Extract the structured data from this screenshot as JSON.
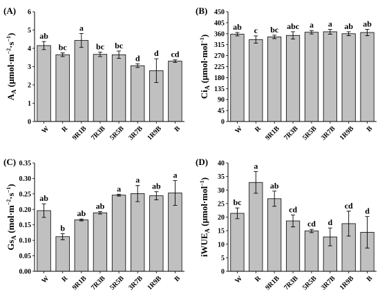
{
  "chart_data": [
    {
      "type": "bar",
      "panel_label": "(A)",
      "ylabel": {
        "main": "A",
        "sub": "A",
        "unit_open": " (μmol·m",
        "sup1": "−2",
        "mid": "·s",
        "sup2": "−1",
        "unit_close": ")"
      },
      "ylim": [
        0,
        6
      ],
      "yticks": [
        "0",
        "1",
        "2",
        "3",
        "4",
        "5",
        "6"
      ],
      "categories": [
        "W",
        "R",
        "9R1B",
        "7R3B",
        "5R5B",
        "3R7B",
        "1R9B",
        "B"
      ],
      "values": [
        4.15,
        3.65,
        4.43,
        3.67,
        3.65,
        3.05,
        2.78,
        3.3
      ],
      "errors": [
        0.22,
        0.1,
        0.38,
        0.12,
        0.2,
        0.1,
        0.65,
        0.07
      ],
      "letters": [
        "ab",
        "bc",
        "a",
        "bc",
        "bc",
        "d",
        "d",
        "cd"
      ],
      "bar_color": "#c0c0c0",
      "grid": false
    },
    {
      "type": "bar",
      "panel_label": "(B)",
      "ylabel": {
        "main": "Ci",
        "sub": "A",
        "unit_open": " (μmol·mol",
        "sup1": "−1",
        "mid": "",
        "sup2": "",
        "unit_close": ")"
      },
      "ylim": [
        0,
        450
      ],
      "yticks": [
        "0",
        "45",
        "90",
        "135",
        "180",
        "225",
        "270",
        "315",
        "360",
        "405",
        "450"
      ],
      "categories": [
        "W",
        "R",
        "9R1B",
        "7R3B",
        "5R5B",
        "3R7B",
        "1R9B",
        "B"
      ],
      "values": [
        358,
        336,
        347,
        353,
        366,
        368,
        360,
        365
      ],
      "errors": [
        7,
        15,
        7,
        15,
        7,
        10,
        8,
        13
      ],
      "letters": [
        "ab",
        "c",
        "bc",
        "abc",
        "a",
        "a",
        "ab",
        "ab"
      ],
      "bar_color": "#c0c0c0",
      "grid": false
    },
    {
      "type": "bar",
      "panel_label": "(C)",
      "ylabel": {
        "main": "Gs",
        "sub": "A",
        "unit_open": " (mol·m",
        "sup1": "−2",
        "mid": "·s",
        "sup2": "−1",
        "unit_close": ")"
      },
      "ylim": [
        0,
        0.35
      ],
      "yticks": [
        "0.00",
        "0.05",
        "0.10",
        "0.15",
        "0.20",
        "0.25",
        "0.30",
        "0.35"
      ],
      "categories": [
        "W",
        "R",
        "9R1B",
        "7R3B",
        "5R5B",
        "3R7B",
        "1R9B",
        "B"
      ],
      "values": [
        0.196,
        0.112,
        0.166,
        0.189,
        0.246,
        0.251,
        0.244,
        0.253
      ],
      "errors": [
        0.022,
        0.01,
        0.003,
        0.004,
        0.003,
        0.026,
        0.013,
        0.04
      ],
      "letters": [
        "ab",
        "b",
        "ab",
        "ab",
        "a",
        "a",
        "ab",
        "a"
      ],
      "bar_color": "#c0c0c0",
      "grid": false
    },
    {
      "type": "bar",
      "panel_label": "(D)",
      "ylabel": {
        "main": "iWUE",
        "sub": "A",
        "unit_open": " (μmol·mol",
        "sup1": "−1",
        "mid": "",
        "sup2": "",
        "unit_close": ")"
      },
      "ylim": [
        0,
        40
      ],
      "yticks": [
        "0",
        "5",
        "10",
        "15",
        "20",
        "25",
        "30",
        "35",
        "40"
      ],
      "categories": [
        "W",
        "R",
        "9R1B",
        "7R3B",
        "5R5B",
        "3R7B",
        "1R9B",
        "B"
      ],
      "values": [
        21.4,
        32.8,
        26.8,
        18.6,
        14.9,
        12.7,
        17.6,
        14.4
      ],
      "errors": [
        2.0,
        4.0,
        2.8,
        2.2,
        0.6,
        3.3,
        4.6,
        5.8
      ],
      "letters": [
        "bc",
        "a",
        "ab",
        "cd",
        "cd",
        "d",
        "cd",
        "d"
      ],
      "bar_color": "#c0c0c0",
      "grid": false
    }
  ]
}
